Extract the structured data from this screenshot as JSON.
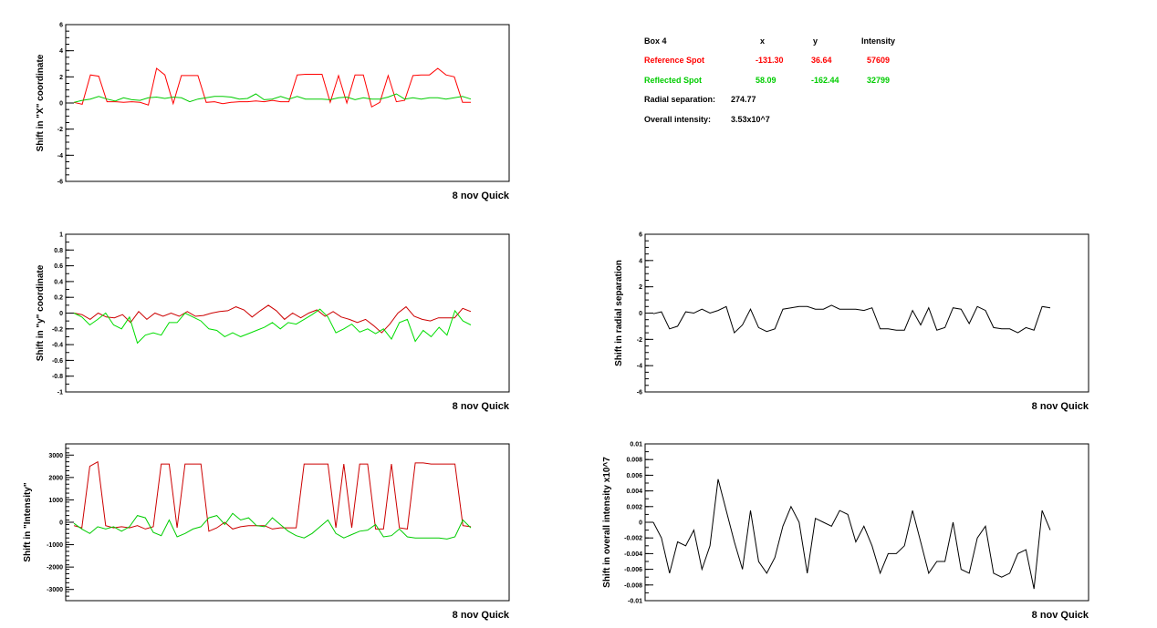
{
  "info_box": {
    "title": "Box 4",
    "col_x": "x",
    "col_y": "y",
    "col_intensity": "Intensity",
    "reference": {
      "label": "Reference Spot",
      "x": "-131.30",
      "y": "36.64",
      "intensity": "57609",
      "color": "#ff0000"
    },
    "reflected": {
      "label": "Reflected Spot",
      "x": "58.09",
      "y": "-162.44",
      "intensity": "32799",
      "color": "#00cc00"
    },
    "radial_label": "Radial separation:",
    "radial_value": "274.77",
    "overall_label": "Overall intensity:",
    "overall_value": "3.53x10^7"
  },
  "chart_data": [
    {
      "type": "line",
      "ylabel": "Shift in \"X\" coordinate",
      "footer": "8 nov Quick",
      "ylim": [
        -6,
        6
      ],
      "yticks": [
        -6,
        -4,
        -2,
        0,
        2,
        4,
        6
      ],
      "ytick_labels": [
        "-6",
        "-4",
        "-2",
        "0",
        "2",
        "4",
        "6"
      ],
      "minor_step": 0.5,
      "series": [
        {
          "color": "#ff0000",
          "values": [
            0.05,
            -0.1,
            2.15,
            2.05,
            0.1,
            0.1,
            0.05,
            0.1,
            0.05,
            -0.15,
            2.65,
            2.15,
            -0.05,
            2.1,
            2.1,
            2.1,
            0.05,
            0.1,
            -0.05,
            0.05,
            0.1,
            0.1,
            0.15,
            0.1,
            0.2,
            0.1,
            0.1,
            2.15,
            2.2,
            2.2,
            2.2,
            0.05,
            2.1,
            0.0,
            2.15,
            2.15,
            -0.3,
            0.05,
            2.1,
            0.1,
            0.2,
            2.1,
            2.15,
            2.15,
            2.65,
            2.15,
            2.0,
            0.05,
            0.05
          ]
        },
        {
          "color": "#00cc00",
          "values": [
            0.05,
            0.2,
            0.3,
            0.5,
            0.3,
            0.15,
            0.4,
            0.25,
            0.2,
            0.4,
            0.45,
            0.35,
            0.45,
            0.4,
            0.1,
            0.3,
            0.4,
            0.5,
            0.5,
            0.45,
            0.3,
            0.35,
            0.7,
            0.25,
            0.3,
            0.5,
            0.3,
            0.5,
            0.3,
            0.3,
            0.3,
            0.25,
            0.4,
            0.45,
            0.25,
            0.4,
            0.3,
            0.3,
            0.45,
            0.7,
            0.3,
            0.4,
            0.3,
            0.4,
            0.4,
            0.3,
            0.4,
            0.5,
            0.3
          ]
        }
      ]
    },
    {
      "type": "line",
      "ylabel": "Shift in \"y\" coordinate",
      "footer": "8 nov Quick",
      "ylim": [
        -1,
        1
      ],
      "yticks": [
        -1,
        -0.8,
        -0.6,
        -0.4,
        -0.2,
        0,
        0.2,
        0.4,
        0.6,
        0.8,
        1
      ],
      "ytick_labels": [
        "-1",
        "-0.8",
        "-0.6",
        "-0.4",
        "-0.2",
        "0",
        "0.2",
        "0.4",
        "0.6",
        "0.8",
        "1"
      ],
      "minor_step": 0.1,
      "series": [
        {
          "color": "#cc0000",
          "values": [
            0.0,
            -0.02,
            -0.08,
            0.0,
            -0.05,
            -0.06,
            -0.02,
            -0.12,
            0.02,
            -0.08,
            0.0,
            -0.04,
            0.0,
            -0.04,
            0.02,
            -0.04,
            -0.03,
            0.0,
            0.02,
            0.03,
            0.08,
            0.04,
            -0.05,
            0.03,
            0.1,
            0.03,
            -0.08,
            0.0,
            -0.06,
            0.0,
            0.04,
            -0.04,
            0.02,
            -0.05,
            -0.08,
            -0.12,
            -0.08,
            -0.16,
            -0.25,
            -0.14,
            0.0,
            0.08,
            -0.04,
            -0.08,
            -0.1,
            -0.06,
            -0.06,
            -0.06,
            0.06,
            0.02
          ]
        },
        {
          "color": "#00dd00",
          "values": [
            0.0,
            -0.05,
            -0.15,
            -0.08,
            0.0,
            -0.15,
            -0.2,
            -0.05,
            -0.38,
            -0.28,
            -0.25,
            -0.28,
            -0.12,
            -0.12,
            0.0,
            -0.05,
            -0.1,
            -0.2,
            -0.22,
            -0.3,
            -0.25,
            -0.3,
            -0.26,
            -0.22,
            -0.18,
            -0.12,
            -0.2,
            -0.12,
            -0.14,
            -0.08,
            -0.02,
            0.05,
            -0.05,
            -0.25,
            -0.2,
            -0.14,
            -0.24,
            -0.2,
            -0.26,
            -0.2,
            -0.33,
            -0.12,
            -0.08,
            -0.36,
            -0.22,
            -0.3,
            -0.18,
            -0.28,
            0.03,
            -0.1,
            -0.15
          ]
        }
      ]
    },
    {
      "type": "line",
      "ylabel": "Shift in \"Intensity\"",
      "footer": "8 nov Quick",
      "ylim": [
        -3500,
        3500
      ],
      "yticks": [
        -3000,
        -2000,
        -1000,
        0,
        1000,
        2000,
        3000
      ],
      "ytick_labels": [
        "-3000",
        "-2000",
        "-1000",
        "0",
        "1000",
        "2000",
        "3000"
      ],
      "minor_step": 200,
      "series": [
        {
          "color": "#cc0000",
          "values": [
            -150,
            -250,
            2500,
            2700,
            -150,
            -250,
            -200,
            -250,
            -150,
            -300,
            -200,
            2600,
            2600,
            -250,
            2600,
            2600,
            2600,
            -400,
            -250,
            0,
            -300,
            -200,
            -150,
            -150,
            -150,
            -300,
            -250,
            -250,
            -250,
            2600,
            2600,
            2600,
            2600,
            -250,
            2600,
            -250,
            2600,
            2600,
            -300,
            -300,
            2600,
            -250,
            -300,
            2650,
            2650,
            2600,
            2600,
            2600,
            2600,
            -150,
            -200
          ]
        },
        {
          "color": "#00cc00",
          "values": [
            -50,
            -300,
            -500,
            -200,
            -300,
            -200,
            -400,
            -200,
            300,
            200,
            -450,
            -600,
            100,
            -650,
            -500,
            -300,
            -200,
            200,
            300,
            -100,
            400,
            100,
            200,
            -150,
            -200,
            200,
            -100,
            -400,
            -600,
            -700,
            -500,
            -200,
            100,
            -500,
            -700,
            -550,
            -400,
            -350,
            -100,
            -650,
            -600,
            -300,
            -650,
            -700,
            -700,
            -700,
            -700,
            -750,
            -650,
            100,
            -250
          ]
        }
      ]
    },
    {
      "type": "line",
      "ylabel": "Shift in radial separation",
      "footer": "8 nov Quick",
      "ylim": [
        -6,
        6
      ],
      "yticks": [
        -6,
        -4,
        -2,
        0,
        2,
        4,
        6
      ],
      "ytick_labels": [
        "-6",
        "-4",
        "-2",
        "0",
        "2",
        "4",
        "6"
      ],
      "minor_step": 0.5,
      "series": [
        {
          "color": "#000000",
          "values": [
            -0.05,
            0.1,
            -1.2,
            -1.0,
            0.1,
            0.0,
            0.3,
            0.0,
            0.2,
            0.5,
            -1.5,
            -0.9,
            0.3,
            -1.1,
            -1.4,
            -1.2,
            0.3,
            0.4,
            0.5,
            0.5,
            0.3,
            0.3,
            0.6,
            0.3,
            0.3,
            0.3,
            0.2,
            0.4,
            -1.2,
            -1.2,
            -1.3,
            -1.3,
            0.2,
            -0.9,
            0.4,
            -1.3,
            -1.1,
            0.4,
            0.3,
            -0.8,
            0.5,
            0.2,
            -1.1,
            -1.2,
            -1.2,
            -1.5,
            -1.1,
            -1.3,
            0.5,
            0.4
          ]
        }
      ]
    },
    {
      "type": "line",
      "ylabel": "Shift in overall intensity x10^7",
      "footer": "8 nov Quick",
      "ylim": [
        -0.01,
        0.01
      ],
      "yticks": [
        -0.01,
        -0.008,
        -0.006,
        -0.004,
        -0.002,
        0,
        0.002,
        0.004,
        0.006,
        0.008,
        0.01
      ],
      "ytick_labels": [
        "-0.01",
        "-0.008",
        "-0.006",
        "-0.004",
        "-0.002",
        "0",
        "0.002",
        "0.004",
        "0.006",
        "0.008",
        "0.01"
      ],
      "minor_step": 0.001,
      "series": [
        {
          "color": "#000000",
          "values": [
            0.0,
            -0.002,
            -0.0065,
            -0.0025,
            -0.003,
            -0.001,
            -0.006,
            -0.003,
            0.0055,
            0.0015,
            -0.0025,
            -0.006,
            0.0015,
            -0.005,
            -0.0065,
            -0.0045,
            -0.0005,
            0.002,
            0.0,
            -0.0065,
            0.0005,
            0.0,
            -0.0005,
            0.0015,
            0.001,
            -0.0025,
            -0.0005,
            -0.003,
            -0.0065,
            -0.004,
            -0.004,
            -0.003,
            0.0015,
            -0.0025,
            -0.0065,
            -0.005,
            -0.005,
            0.0,
            -0.006,
            -0.0065,
            -0.002,
            -0.0005,
            -0.0065,
            -0.007,
            -0.0065,
            -0.004,
            -0.0035,
            -0.0085,
            0.0015,
            -0.001
          ]
        }
      ]
    }
  ]
}
